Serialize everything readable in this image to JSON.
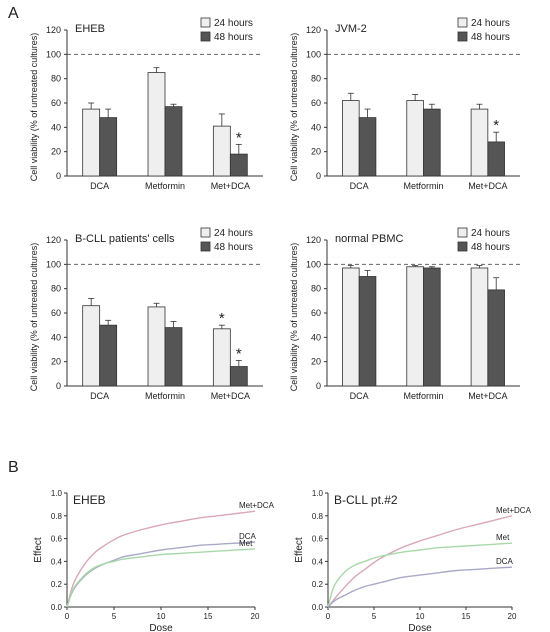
{
  "panel_labels": {
    "a": "A",
    "b": "B"
  },
  "colors": {
    "bar_24h": "#efefef",
    "bar_48h": "#555555",
    "bar_stroke": "#333333",
    "axis": "#333333",
    "reference_line": "#666666",
    "curve_met_dca": "#d8a8b8",
    "curve_dca": "#a8a8c8",
    "curve_met": "#a8d8a8"
  },
  "chart_data": [
    {
      "type": "bar",
      "title": "EHEB",
      "ylabel": "Cell viability (% of untreated cultures)",
      "categories": [
        "DCA",
        "Metformin",
        "Met+DCA"
      ],
      "yticks": [
        "0",
        "20",
        "40",
        "60",
        "80",
        "100",
        "120"
      ],
      "ylim": [
        0,
        120
      ],
      "reference_line": 100,
      "legend": [
        "24 hours",
        "48 hours"
      ],
      "series": [
        {
          "name": "24 hours",
          "values": [
            55,
            85,
            41
          ],
          "errors": [
            5,
            4,
            10
          ],
          "significance": [
            "",
            "",
            ""
          ]
        },
        {
          "name": "48 hours",
          "values": [
            48,
            57,
            18
          ],
          "errors": [
            7,
            2,
            8
          ],
          "significance": [
            "",
            "",
            "*"
          ]
        }
      ]
    },
    {
      "type": "bar",
      "title": "JVM-2",
      "ylabel": "Cell viability (% of untreated cultures)",
      "categories": [
        "DCA",
        "Metformin",
        "Met+DCA"
      ],
      "yticks": [
        "0",
        "20",
        "40",
        "60",
        "80",
        "100",
        "120"
      ],
      "ylim": [
        0,
        120
      ],
      "reference_line": 100,
      "legend": [
        "24 hours",
        "48 hours"
      ],
      "series": [
        {
          "name": "24 hours",
          "values": [
            62,
            62,
            55
          ],
          "errors": [
            6,
            5,
            4
          ],
          "significance": [
            "",
            "",
            ""
          ]
        },
        {
          "name": "48 hours",
          "values": [
            48,
            55,
            28
          ],
          "errors": [
            7,
            4,
            8
          ],
          "significance": [
            "",
            "",
            "*"
          ]
        }
      ]
    },
    {
      "type": "bar",
      "title": "B-CLL patients' cells",
      "ylabel": "Cell viability (% of untreated cultures)",
      "categories": [
        "DCA",
        "Metformin",
        "Met+DCA"
      ],
      "yticks": [
        "0",
        "20",
        "40",
        "60",
        "80",
        "100",
        "120"
      ],
      "ylim": [
        0,
        120
      ],
      "reference_line": 100,
      "legend": [
        "24 hours",
        "48 hours"
      ],
      "series": [
        {
          "name": "24 hours",
          "values": [
            66,
            65,
            47
          ],
          "errors": [
            6,
            3,
            3
          ],
          "significance": [
            "",
            "",
            "*"
          ]
        },
        {
          "name": "48 hours",
          "values": [
            50,
            48,
            16
          ],
          "errors": [
            4,
            5,
            5
          ],
          "significance": [
            "",
            "",
            "*"
          ]
        }
      ]
    },
    {
      "type": "bar",
      "title": "normal PBMC",
      "ylabel": "Cell viability (% of untreated cultures)",
      "categories": [
        "DCA",
        "Metformin",
        "Met+DCA"
      ],
      "yticks": [
        "0",
        "20",
        "40",
        "60",
        "80",
        "100",
        "120"
      ],
      "ylim": [
        0,
        120
      ],
      "reference_line": 100,
      "legend": [
        "24 hours",
        "48 hours"
      ],
      "series": [
        {
          "name": "24 hours",
          "values": [
            97,
            98,
            97
          ],
          "errors": [
            2,
            1,
            2
          ],
          "significance": [
            "",
            "",
            ""
          ]
        },
        {
          "name": "48 hours",
          "values": [
            90,
            97,
            79
          ],
          "errors": [
            5,
            1,
            10
          ],
          "significance": [
            "",
            "",
            ""
          ]
        }
      ]
    },
    {
      "type": "line",
      "title": "EHEB",
      "xlabel": "Dose",
      "ylabel": "Effect",
      "xlim": [
        0,
        20
      ],
      "ylim": [
        0,
        1.0
      ],
      "xticks": [
        "0",
        "5",
        "10",
        "15",
        "20"
      ],
      "yticks": [
        "0.0",
        "0.2",
        "0.4",
        "0.6",
        "0.8",
        "1.0"
      ],
      "x": [
        0,
        0.5,
        1,
        2,
        3,
        4,
        5,
        6,
        8,
        10,
        12,
        14,
        16,
        18,
        20
      ],
      "series": [
        {
          "name": "Met+DCA",
          "values": [
            0,
            0.16,
            0.26,
            0.39,
            0.48,
            0.54,
            0.59,
            0.63,
            0.68,
            0.72,
            0.75,
            0.78,
            0.8,
            0.82,
            0.84
          ]
        },
        {
          "name": "DCA",
          "values": [
            0,
            0.12,
            0.19,
            0.28,
            0.34,
            0.38,
            0.41,
            0.44,
            0.47,
            0.5,
            0.52,
            0.54,
            0.55,
            0.56,
            0.57
          ]
        },
        {
          "name": "Met",
          "values": [
            0,
            0.13,
            0.2,
            0.29,
            0.35,
            0.38,
            0.4,
            0.42,
            0.44,
            0.46,
            0.47,
            0.48,
            0.49,
            0.5,
            0.51
          ]
        }
      ]
    },
    {
      "type": "line",
      "title": "B-CLL pt.#2",
      "xlabel": "Dose",
      "ylabel": "Effect",
      "xlim": [
        0,
        20
      ],
      "ylim": [
        0,
        1.0
      ],
      "xticks": [
        "0",
        "5",
        "10",
        "15",
        "20"
      ],
      "yticks": [
        "0.0",
        "0.2",
        "0.4",
        "0.6",
        "0.8",
        "1.0"
      ],
      "x": [
        0,
        0.5,
        1,
        2,
        3,
        4,
        5,
        6,
        8,
        10,
        12,
        14,
        16,
        18,
        20
      ],
      "series": [
        {
          "name": "Met+DCA",
          "values": [
            0,
            0.05,
            0.1,
            0.19,
            0.27,
            0.33,
            0.39,
            0.44,
            0.52,
            0.58,
            0.63,
            0.68,
            0.72,
            0.76,
            0.8
          ]
        },
        {
          "name": "Met",
          "values": [
            0,
            0.15,
            0.23,
            0.32,
            0.37,
            0.4,
            0.43,
            0.45,
            0.48,
            0.5,
            0.52,
            0.53,
            0.54,
            0.55,
            0.56
          ]
        },
        {
          "name": "DCA",
          "values": [
            0,
            0.04,
            0.07,
            0.11,
            0.15,
            0.18,
            0.2,
            0.22,
            0.26,
            0.28,
            0.3,
            0.32,
            0.33,
            0.34,
            0.35
          ]
        }
      ]
    }
  ]
}
